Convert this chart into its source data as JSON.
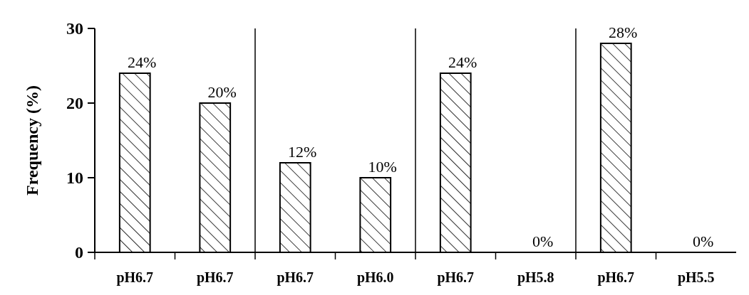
{
  "chart_data": {
    "type": "bar",
    "ylabel": "Frequency (%)",
    "categories": [
      "pH6.7",
      "pH6.7",
      "pH6.7",
      "pH6.0",
      "pH6.7",
      "pH5.8",
      "pH6.7",
      "pH5.5"
    ],
    "values": [
      24,
      20,
      12,
      10,
      24,
      0,
      28,
      0
    ],
    "value_labels": [
      "24%",
      "20%",
      "12%",
      "10%",
      "24%",
      "0%",
      "28%",
      "0%"
    ],
    "color": "#000000",
    "ylim": [
      0,
      30
    ],
    "yticks": [
      0,
      10,
      20,
      30
    ],
    "grid": false
  }
}
